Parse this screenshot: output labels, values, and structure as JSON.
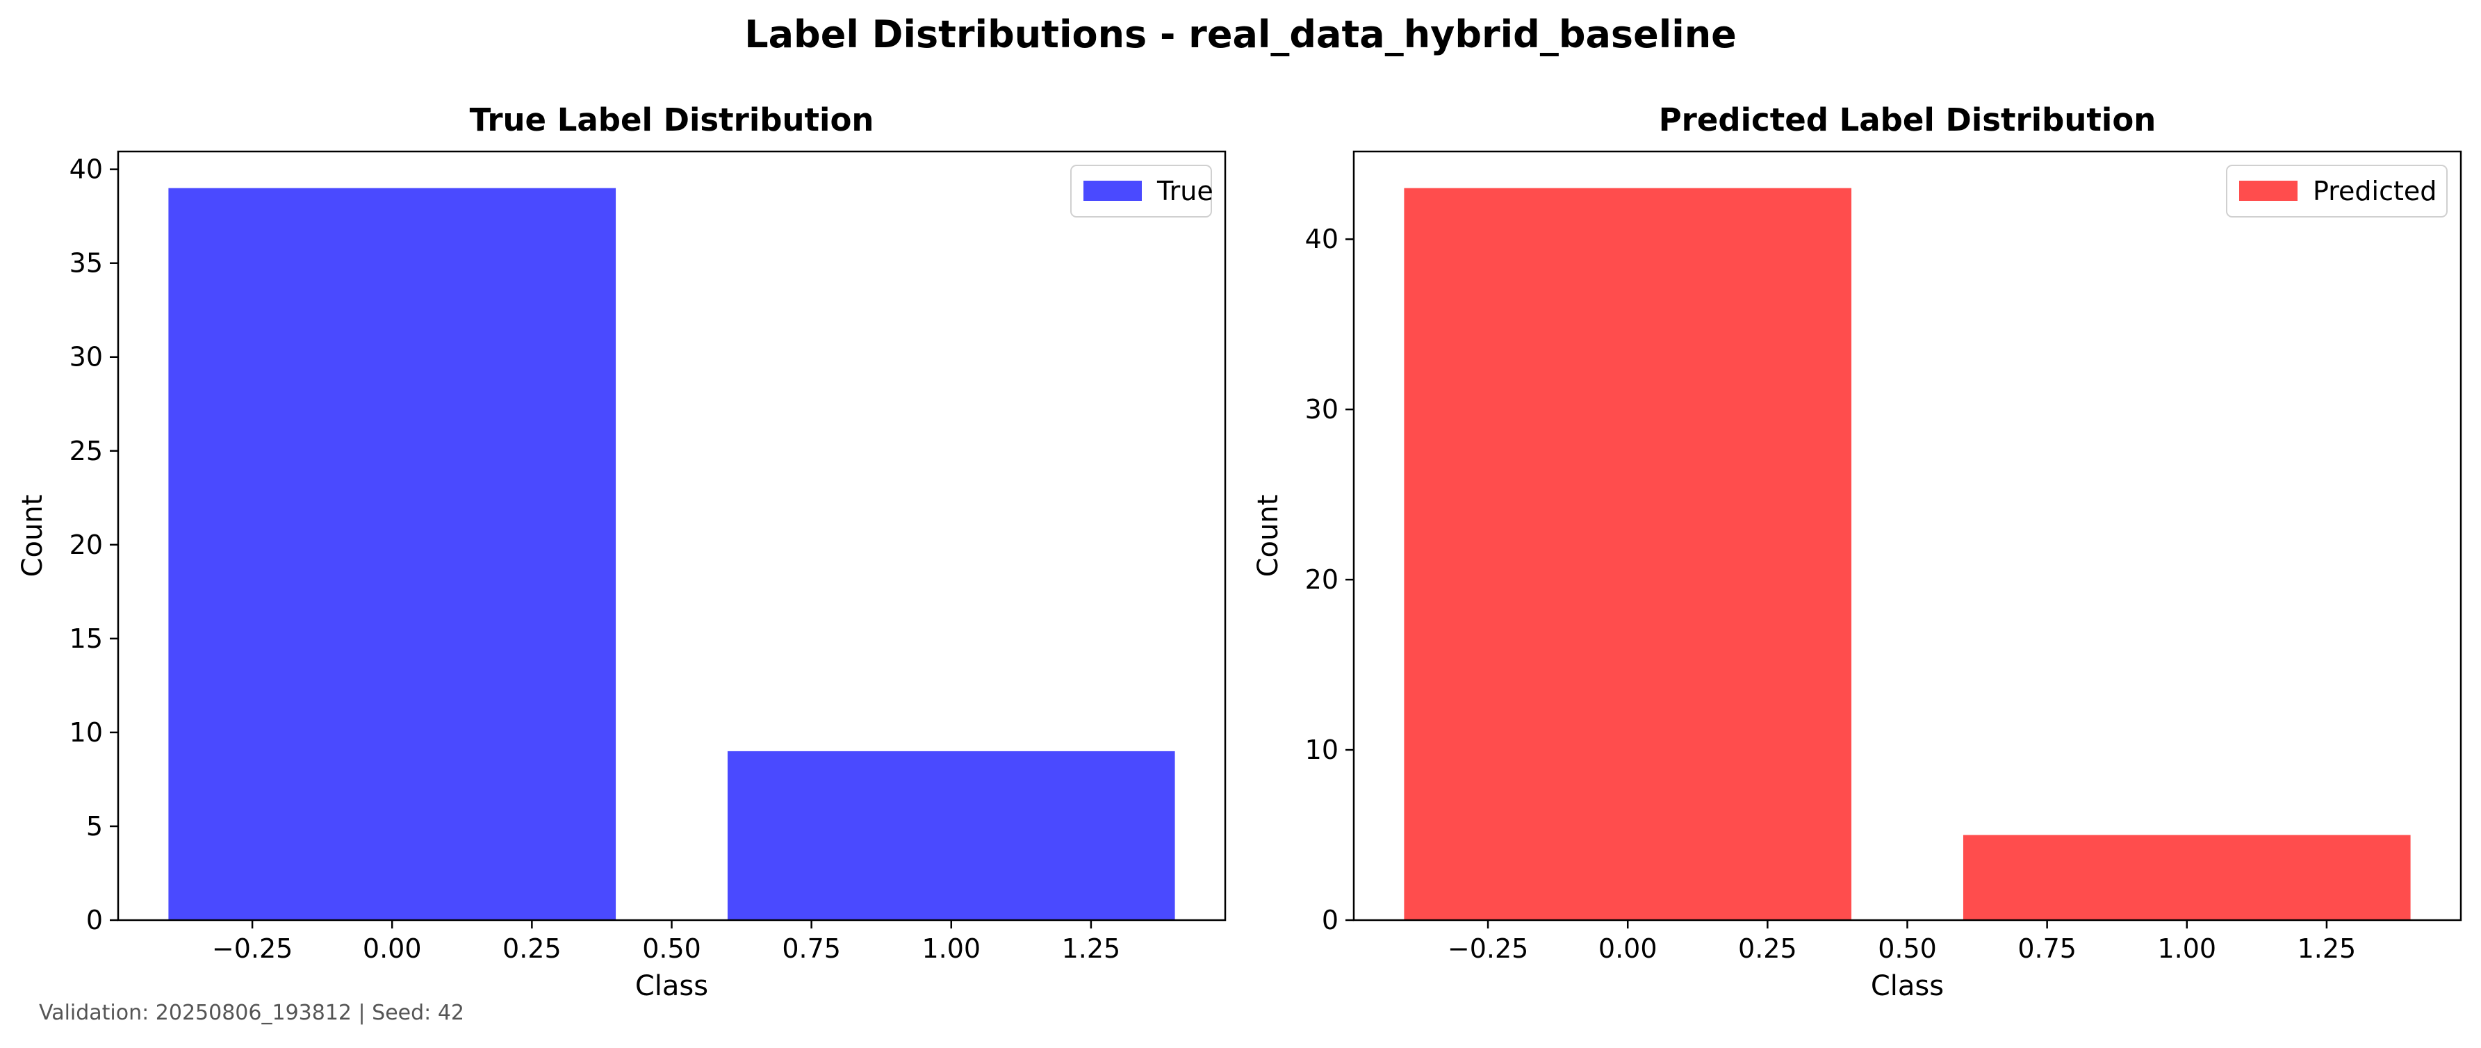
{
  "figure": {
    "suptitle": "Label Distributions - real_data_hybrid_baseline",
    "footer": "Validation: 20250806_193812 | Seed: 42"
  },
  "chart_data": [
    {
      "type": "bar",
      "title": "True Label Distribution",
      "xlabel": "Class",
      "ylabel": "Count",
      "x": [
        0,
        1
      ],
      "values": [
        39,
        9
      ],
      "bar_width": 0.8,
      "color": "#4a4aff",
      "legend": {
        "label": "True",
        "placement": "upper-right"
      },
      "xlim": [
        -0.49,
        1.49
      ],
      "ylim": [
        0,
        40.95
      ],
      "xticks": [
        -0.25,
        0.0,
        0.25,
        0.5,
        0.75,
        1.0,
        1.25
      ],
      "xtick_labels": [
        "−0.25",
        "0.00",
        "0.25",
        "0.50",
        "0.75",
        "1.00",
        "1.25"
      ],
      "yticks": [
        0,
        5,
        10,
        15,
        20,
        25,
        30,
        35,
        40
      ],
      "ytick_labels": [
        "0",
        "5",
        "10",
        "15",
        "20",
        "25",
        "30",
        "35",
        "40"
      ],
      "grid": false
    },
    {
      "type": "bar",
      "title": "Predicted Label Distribution",
      "xlabel": "Class",
      "ylabel": "Count",
      "x": [
        0,
        1
      ],
      "values": [
        43,
        5
      ],
      "bar_width": 0.8,
      "color": "#ff4d4d",
      "legend": {
        "label": "Predicted",
        "placement": "upper-right"
      },
      "xlim": [
        -0.49,
        1.49
      ],
      "ylim": [
        0,
        45.15
      ],
      "xticks": [
        -0.25,
        0.0,
        0.25,
        0.5,
        0.75,
        1.0,
        1.25
      ],
      "xtick_labels": [
        "−0.25",
        "0.00",
        "0.25",
        "0.50",
        "0.75",
        "1.00",
        "1.25"
      ],
      "yticks": [
        0,
        10,
        20,
        30,
        40
      ],
      "ytick_labels": [
        "0",
        "10",
        "20",
        "30",
        "40"
      ],
      "grid": false
    }
  ]
}
